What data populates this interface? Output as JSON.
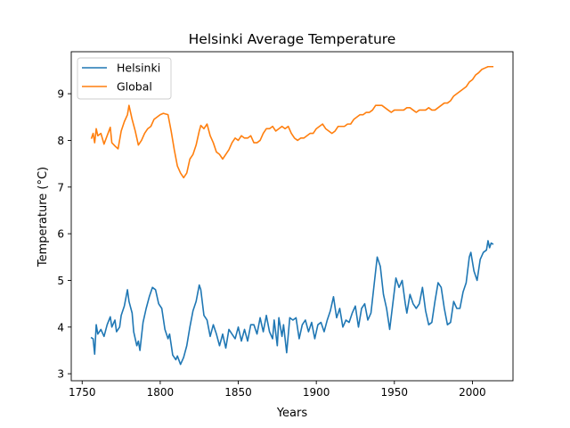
{
  "chart_data": {
    "type": "line",
    "title": "Helsinki Average Temperature",
    "xlabel": "Years",
    "ylabel": "Temperature (°C)",
    "xlim": [
      1743,
      2026
    ],
    "ylim": [
      2.85,
      9.9
    ],
    "x_ticks": [
      1750,
      1800,
      1850,
      1900,
      1950,
      2000
    ],
    "y_ticks": [
      3,
      4,
      5,
      6,
      7,
      8,
      9
    ],
    "grid": false,
    "legend": "upper left",
    "series": [
      {
        "name": "Helsinki",
        "color": "#1f77b4",
        "points": [
          [
            1756,
            3.77
          ],
          [
            1757,
            3.75
          ],
          [
            1758,
            3.42
          ],
          [
            1759,
            4.05
          ],
          [
            1760,
            3.85
          ],
          [
            1762,
            3.95
          ],
          [
            1764,
            3.8
          ],
          [
            1766,
            4.05
          ],
          [
            1768,
            4.22
          ],
          [
            1769,
            4.0
          ],
          [
            1771,
            4.15
          ],
          [
            1772,
            3.9
          ],
          [
            1774,
            4.0
          ],
          [
            1775,
            4.25
          ],
          [
            1777,
            4.45
          ],
          [
            1779,
            4.8
          ],
          [
            1780,
            4.55
          ],
          [
            1782,
            4.3
          ],
          [
            1783,
            3.9
          ],
          [
            1785,
            3.6
          ],
          [
            1786,
            3.7
          ],
          [
            1787,
            3.5
          ],
          [
            1789,
            4.1
          ],
          [
            1791,
            4.4
          ],
          [
            1793,
            4.65
          ],
          [
            1795,
            4.85
          ],
          [
            1797,
            4.8
          ],
          [
            1799,
            4.5
          ],
          [
            1801,
            4.4
          ],
          [
            1803,
            3.95
          ],
          [
            1805,
            3.75
          ],
          [
            1806,
            3.85
          ],
          [
            1808,
            3.4
          ],
          [
            1810,
            3.3
          ],
          [
            1811,
            3.38
          ],
          [
            1813,
            3.2
          ],
          [
            1815,
            3.35
          ],
          [
            1817,
            3.6
          ],
          [
            1819,
            4.0
          ],
          [
            1821,
            4.35
          ],
          [
            1823,
            4.55
          ],
          [
            1825,
            4.9
          ],
          [
            1826,
            4.8
          ],
          [
            1828,
            4.25
          ],
          [
            1830,
            4.15
          ],
          [
            1832,
            3.8
          ],
          [
            1834,
            4.05
          ],
          [
            1836,
            3.85
          ],
          [
            1838,
            3.6
          ],
          [
            1840,
            3.85
          ],
          [
            1842,
            3.55
          ],
          [
            1844,
            3.95
          ],
          [
            1846,
            3.85
          ],
          [
            1848,
            3.75
          ],
          [
            1850,
            4.0
          ],
          [
            1852,
            3.7
          ],
          [
            1854,
            3.95
          ],
          [
            1856,
            3.7
          ],
          [
            1858,
            4.05
          ],
          [
            1860,
            4.05
          ],
          [
            1862,
            3.85
          ],
          [
            1864,
            4.2
          ],
          [
            1866,
            3.9
          ],
          [
            1868,
            4.25
          ],
          [
            1870,
            3.9
          ],
          [
            1872,
            3.75
          ],
          [
            1873,
            4.15
          ],
          [
            1875,
            3.6
          ],
          [
            1876,
            4.2
          ],
          [
            1878,
            3.8
          ],
          [
            1879,
            4.05
          ],
          [
            1881,
            3.45
          ],
          [
            1883,
            4.2
          ],
          [
            1885,
            4.15
          ],
          [
            1887,
            4.2
          ],
          [
            1889,
            3.75
          ],
          [
            1891,
            4.05
          ],
          [
            1893,
            4.15
          ],
          [
            1895,
            3.9
          ],
          [
            1897,
            4.1
          ],
          [
            1899,
            3.75
          ],
          [
            1901,
            4.05
          ],
          [
            1903,
            4.1
          ],
          [
            1905,
            3.9
          ],
          [
            1907,
            4.15
          ],
          [
            1909,
            4.35
          ],
          [
            1911,
            4.65
          ],
          [
            1913,
            4.2
          ],
          [
            1915,
            4.4
          ],
          [
            1917,
            4.0
          ],
          [
            1919,
            4.15
          ],
          [
            1921,
            4.1
          ],
          [
            1923,
            4.3
          ],
          [
            1925,
            4.45
          ],
          [
            1927,
            4.0
          ],
          [
            1929,
            4.4
          ],
          [
            1931,
            4.5
          ],
          [
            1933,
            4.15
          ],
          [
            1935,
            4.3
          ],
          [
            1937,
            4.9
          ],
          [
            1939,
            5.5
          ],
          [
            1941,
            5.3
          ],
          [
            1943,
            4.7
          ],
          [
            1945,
            4.4
          ],
          [
            1947,
            3.95
          ],
          [
            1949,
            4.5
          ],
          [
            1951,
            5.05
          ],
          [
            1953,
            4.85
          ],
          [
            1955,
            5.0
          ],
          [
            1957,
            4.5
          ],
          [
            1958,
            4.3
          ],
          [
            1960,
            4.7
          ],
          [
            1962,
            4.5
          ],
          [
            1964,
            4.4
          ],
          [
            1966,
            4.5
          ],
          [
            1968,
            4.85
          ],
          [
            1970,
            4.35
          ],
          [
            1972,
            4.05
          ],
          [
            1974,
            4.1
          ],
          [
            1976,
            4.55
          ],
          [
            1978,
            4.95
          ],
          [
            1980,
            4.85
          ],
          [
            1982,
            4.4
          ],
          [
            1984,
            4.05
          ],
          [
            1986,
            4.1
          ],
          [
            1988,
            4.55
          ],
          [
            1990,
            4.4
          ],
          [
            1992,
            4.4
          ],
          [
            1994,
            4.75
          ],
          [
            1996,
            4.95
          ],
          [
            1998,
            5.5
          ],
          [
            1999,
            5.6
          ],
          [
            2001,
            5.2
          ],
          [
            2003,
            5.0
          ],
          [
            2005,
            5.45
          ],
          [
            2007,
            5.6
          ],
          [
            2009,
            5.65
          ],
          [
            2010,
            5.85
          ],
          [
            2011,
            5.7
          ],
          [
            2012,
            5.8
          ],
          [
            2013,
            5.78
          ]
        ]
      },
      {
        "name": "Global",
        "color": "#ff7f0e",
        "points": [
          [
            1756,
            8.05
          ],
          [
            1757,
            8.15
          ],
          [
            1758,
            7.95
          ],
          [
            1759,
            8.25
          ],
          [
            1760,
            8.1
          ],
          [
            1762,
            8.15
          ],
          [
            1764,
            7.92
          ],
          [
            1766,
            8.1
          ],
          [
            1768,
            8.28
          ],
          [
            1769,
            7.95
          ],
          [
            1771,
            7.88
          ],
          [
            1773,
            7.82
          ],
          [
            1775,
            8.2
          ],
          [
            1777,
            8.4
          ],
          [
            1779,
            8.55
          ],
          [
            1780,
            8.75
          ],
          [
            1782,
            8.45
          ],
          [
            1784,
            8.2
          ],
          [
            1786,
            7.9
          ],
          [
            1788,
            8.0
          ],
          [
            1790,
            8.15
          ],
          [
            1792,
            8.25
          ],
          [
            1794,
            8.3
          ],
          [
            1796,
            8.45
          ],
          [
            1798,
            8.5
          ],
          [
            1800,
            8.55
          ],
          [
            1802,
            8.58
          ],
          [
            1805,
            8.55
          ],
          [
            1807,
            8.2
          ],
          [
            1809,
            7.8
          ],
          [
            1811,
            7.45
          ],
          [
            1813,
            7.3
          ],
          [
            1815,
            7.2
          ],
          [
            1817,
            7.3
          ],
          [
            1819,
            7.6
          ],
          [
            1821,
            7.7
          ],
          [
            1823,
            7.9
          ],
          [
            1825,
            8.2
          ],
          [
            1826,
            8.32
          ],
          [
            1828,
            8.25
          ],
          [
            1830,
            8.35
          ],
          [
            1832,
            8.1
          ],
          [
            1834,
            7.95
          ],
          [
            1836,
            7.75
          ],
          [
            1838,
            7.7
          ],
          [
            1840,
            7.6
          ],
          [
            1842,
            7.7
          ],
          [
            1844,
            7.8
          ],
          [
            1846,
            7.95
          ],
          [
            1848,
            8.05
          ],
          [
            1850,
            8.0
          ],
          [
            1852,
            8.1
          ],
          [
            1854,
            8.05
          ],
          [
            1856,
            8.05
          ],
          [
            1858,
            8.1
          ],
          [
            1860,
            7.95
          ],
          [
            1862,
            7.95
          ],
          [
            1864,
            8.0
          ],
          [
            1866,
            8.15
          ],
          [
            1868,
            8.25
          ],
          [
            1870,
            8.25
          ],
          [
            1872,
            8.3
          ],
          [
            1874,
            8.2
          ],
          [
            1876,
            8.25
          ],
          [
            1878,
            8.3
          ],
          [
            1880,
            8.25
          ],
          [
            1882,
            8.3
          ],
          [
            1884,
            8.15
          ],
          [
            1886,
            8.05
          ],
          [
            1888,
            8.0
          ],
          [
            1890,
            8.05
          ],
          [
            1892,
            8.05
          ],
          [
            1894,
            8.1
          ],
          [
            1896,
            8.15
          ],
          [
            1898,
            8.15
          ],
          [
            1900,
            8.25
          ],
          [
            1902,
            8.3
          ],
          [
            1904,
            8.35
          ],
          [
            1906,
            8.25
          ],
          [
            1908,
            8.2
          ],
          [
            1910,
            8.15
          ],
          [
            1912,
            8.2
          ],
          [
            1914,
            8.3
          ],
          [
            1916,
            8.3
          ],
          [
            1918,
            8.3
          ],
          [
            1920,
            8.35
          ],
          [
            1922,
            8.35
          ],
          [
            1924,
            8.45
          ],
          [
            1926,
            8.5
          ],
          [
            1928,
            8.55
          ],
          [
            1930,
            8.55
          ],
          [
            1932,
            8.6
          ],
          [
            1934,
            8.6
          ],
          [
            1936,
            8.65
          ],
          [
            1938,
            8.75
          ],
          [
            1940,
            8.75
          ],
          [
            1942,
            8.75
          ],
          [
            1944,
            8.7
          ],
          [
            1946,
            8.65
          ],
          [
            1948,
            8.6
          ],
          [
            1950,
            8.65
          ],
          [
            1952,
            8.65
          ],
          [
            1954,
            8.65
          ],
          [
            1956,
            8.65
          ],
          [
            1958,
            8.7
          ],
          [
            1960,
            8.7
          ],
          [
            1962,
            8.65
          ],
          [
            1964,
            8.6
          ],
          [
            1966,
            8.65
          ],
          [
            1968,
            8.65
          ],
          [
            1970,
            8.65
          ],
          [
            1972,
            8.7
          ],
          [
            1974,
            8.65
          ],
          [
            1976,
            8.65
          ],
          [
            1978,
            8.7
          ],
          [
            1980,
            8.75
          ],
          [
            1982,
            8.8
          ],
          [
            1984,
            8.8
          ],
          [
            1986,
            8.85
          ],
          [
            1988,
            8.95
          ],
          [
            1990,
            9.0
          ],
          [
            1992,
            9.05
          ],
          [
            1994,
            9.1
          ],
          [
            1996,
            9.15
          ],
          [
            1998,
            9.25
          ],
          [
            2000,
            9.3
          ],
          [
            2002,
            9.4
          ],
          [
            2004,
            9.45
          ],
          [
            2006,
            9.52
          ],
          [
            2008,
            9.55
          ],
          [
            2010,
            9.58
          ],
          [
            2012,
            9.58
          ],
          [
            2013,
            9.58
          ]
        ]
      }
    ]
  }
}
